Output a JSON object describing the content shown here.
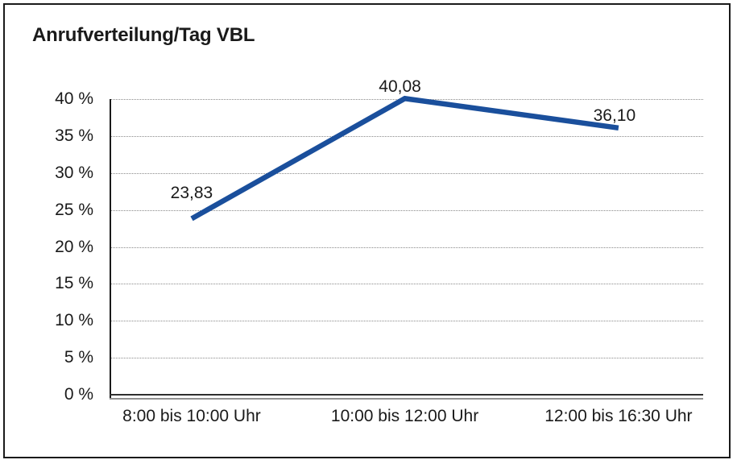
{
  "title": "Anrufverteilung/Tag VBL",
  "chart_data": {
    "type": "line",
    "title": "Anrufverteilung/Tag VBL",
    "categories": [
      "8:00 bis 10:00 Uhr",
      "10:00 bis 12:00 Uhr",
      "12:00 bis 16:30 Uhr"
    ],
    "values": [
      23.83,
      40.08,
      36.1
    ],
    "point_labels": [
      "23,83",
      "40,08",
      "36,10"
    ],
    "xlabel": "",
    "ylabel": "",
    "ylim": [
      0,
      40
    ],
    "ytick_step": 5,
    "ytick_labels": [
      "0 %",
      "5 %",
      "10 %",
      "15 %",
      "20 %",
      "25 %",
      "30 %",
      "35 %",
      "40 %"
    ],
    "grid": "horizontal-dotted",
    "legend_position": "none"
  },
  "colors": {
    "line": "#1A4F9C",
    "grid": "#8a8a8a",
    "axis": "#1a1a1a",
    "axis_shadow": "#909090",
    "text": "#1a1a1a",
    "background": "#ffffff",
    "border": "#1a1a1a"
  }
}
